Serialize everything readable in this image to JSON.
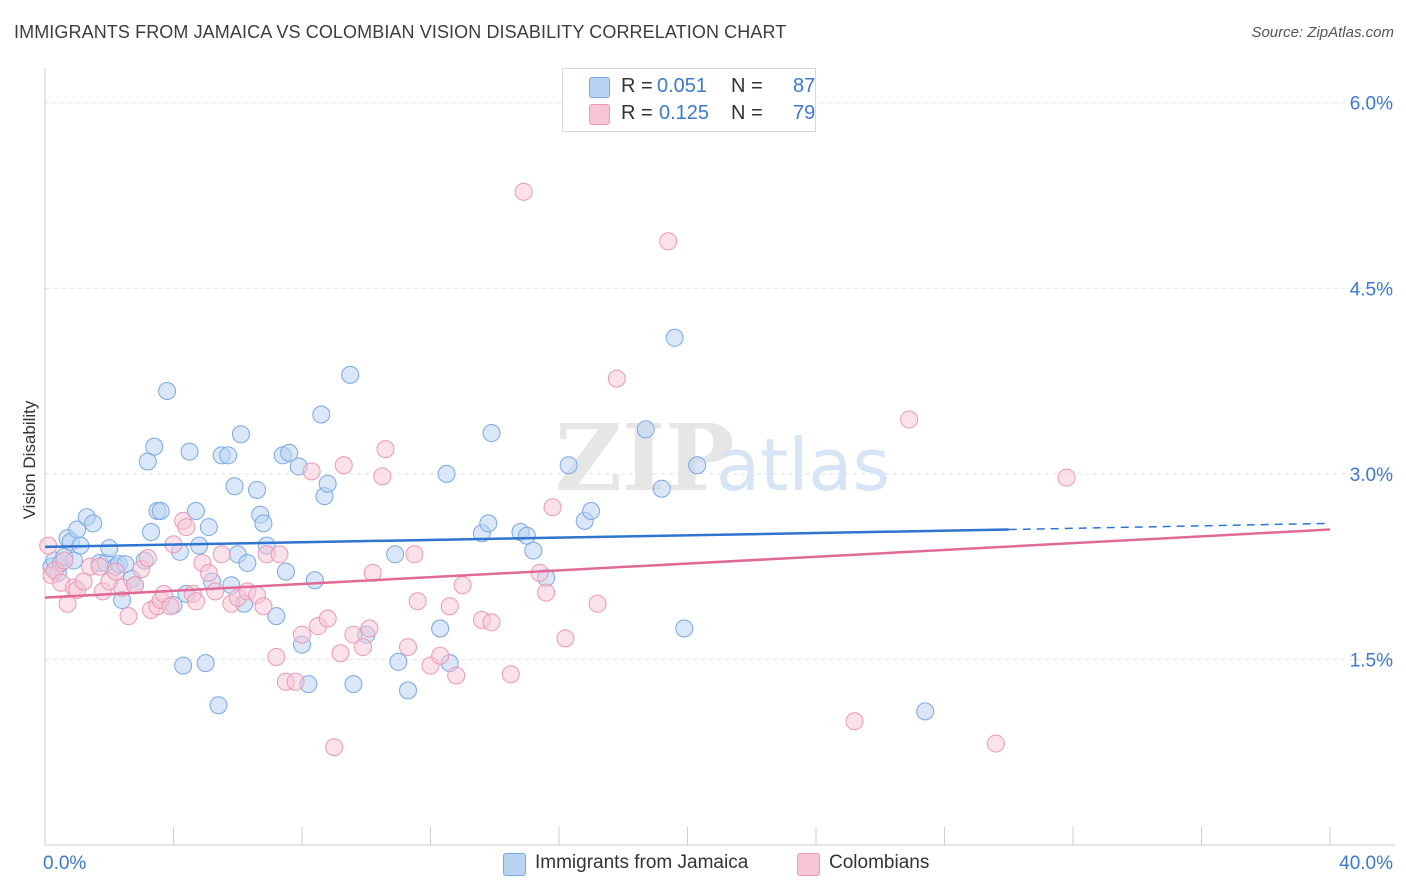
{
  "title": "IMMIGRANTS FROM JAMAICA VS COLOMBIAN VISION DISABILITY CORRELATION CHART",
  "source": "Source: ZipAtlas.com",
  "watermark": "ZIPatlas",
  "legend": {
    "series1": {
      "r_label": "R =",
      "r_value": "0.051",
      "n_label": "N =",
      "n_value": "87"
    },
    "series2": {
      "r_label": "R =",
      "r_value": "0.125",
      "n_label": "N =",
      "n_value": "79"
    }
  },
  "bottom_legend": {
    "series1": "Immigrants from Jamaica",
    "series2": "Colombians"
  },
  "colors": {
    "blue_fill": "#b9d3f3",
    "blue_stroke": "#7aa8e6",
    "blue_line": "#2f75d0",
    "pink_fill": "#f7c6d6",
    "pink_stroke": "#ec98b4",
    "pink_line": "#e06a95",
    "tick_text": "#3b78d0",
    "grid": "#e2e2e2"
  },
  "chart_data": {
    "type": "scatter",
    "title": "IMMIGRANTS FROM JAMAICA VS COLOMBIAN VISION DISABILITY CORRELATION CHART",
    "xlabel": "",
    "ylabel": "Vision Disability",
    "xlim": [
      0,
      40
    ],
    "ylim": [
      0,
      6.2
    ],
    "x_tick_labels": [
      "0.0%",
      "40.0%"
    ],
    "y_ticks": [
      1.5,
      3.0,
      4.5,
      6.0
    ],
    "y_tick_labels": [
      "1.5%",
      "3.0%",
      "4.5%",
      "6.0%"
    ],
    "grid": true,
    "legend_position": "top-center",
    "series": [
      {
        "name": "Immigrants from Jamaica",
        "color": "#b9d3f3",
        "trend": {
          "x0": 0,
          "y0": 2.41,
          "x1": 30,
          "y1": 2.55,
          "dashed_to_x": 40,
          "dashed_to_y": 2.6
        },
        "points": [
          [
            0.2,
            2.25
          ],
          [
            0.3,
            2.3
          ],
          [
            0.4,
            2.2
          ],
          [
            0.5,
            2.28
          ],
          [
            0.6,
            2.33
          ],
          [
            0.7,
            2.48
          ],
          [
            0.8,
            2.45
          ],
          [
            0.9,
            2.3
          ],
          [
            1.0,
            2.55
          ],
          [
            1.1,
            2.42
          ],
          [
            1.3,
            2.65
          ],
          [
            1.5,
            2.6
          ],
          [
            1.7,
            2.28
          ],
          [
            1.9,
            2.28
          ],
          [
            2.0,
            2.4
          ],
          [
            2.2,
            2.25
          ],
          [
            2.3,
            2.27
          ],
          [
            2.4,
            1.98
          ],
          [
            2.5,
            2.27
          ],
          [
            2.7,
            2.15
          ],
          [
            2.8,
            2.1
          ],
          [
            3.1,
            2.3
          ],
          [
            3.2,
            3.1
          ],
          [
            3.3,
            2.53
          ],
          [
            3.4,
            3.22
          ],
          [
            3.5,
            2.7
          ],
          [
            3.6,
            2.7
          ],
          [
            3.8,
            3.67
          ],
          [
            4.0,
            1.94
          ],
          [
            4.2,
            2.37
          ],
          [
            4.3,
            1.45
          ],
          [
            4.4,
            2.03
          ],
          [
            4.5,
            3.18
          ],
          [
            4.7,
            2.7
          ],
          [
            4.8,
            2.42
          ],
          [
            5.0,
            1.47
          ],
          [
            5.1,
            2.57
          ],
          [
            5.2,
            2.13
          ],
          [
            5.4,
            1.13
          ],
          [
            5.5,
            3.15
          ],
          [
            5.7,
            3.15
          ],
          [
            5.8,
            2.1
          ],
          [
            5.9,
            2.9
          ],
          [
            6.0,
            2.35
          ],
          [
            6.1,
            3.32
          ],
          [
            6.2,
            1.95
          ],
          [
            6.3,
            2.28
          ],
          [
            6.6,
            2.87
          ],
          [
            6.7,
            2.67
          ],
          [
            6.8,
            2.6
          ],
          [
            6.9,
            2.42
          ],
          [
            7.2,
            1.85
          ],
          [
            7.4,
            3.15
          ],
          [
            7.5,
            2.21
          ],
          [
            7.6,
            3.17
          ],
          [
            7.9,
            3.06
          ],
          [
            8.0,
            1.62
          ],
          [
            8.2,
            1.3
          ],
          [
            8.4,
            2.14
          ],
          [
            8.6,
            3.48
          ],
          [
            8.7,
            2.82
          ],
          [
            8.8,
            2.92
          ],
          [
            9.5,
            3.8
          ],
          [
            9.6,
            1.3
          ],
          [
            10.0,
            1.7
          ],
          [
            11.0,
            1.48
          ],
          [
            10.9,
            2.35
          ],
          [
            11.3,
            1.25
          ],
          [
            12.3,
            1.75
          ],
          [
            12.5,
            3.0
          ],
          [
            12.6,
            1.47
          ],
          [
            13.6,
            2.52
          ],
          [
            13.8,
            2.6
          ],
          [
            13.9,
            3.33
          ],
          [
            14.8,
            2.53
          ],
          [
            15.0,
            2.5
          ],
          [
            15.2,
            2.38
          ],
          [
            15.6,
            2.16
          ],
          [
            16.3,
            3.07
          ],
          [
            16.8,
            2.62
          ],
          [
            17.0,
            2.7
          ],
          [
            18.7,
            3.36
          ],
          [
            19.2,
            2.88
          ],
          [
            19.6,
            4.1
          ],
          [
            19.9,
            1.75
          ],
          [
            20.3,
            3.07
          ],
          [
            27.4,
            1.08
          ]
        ]
      },
      {
        "name": "Colombians",
        "color": "#f7c6d6",
        "trend": {
          "x0": 0,
          "y0": 2.0,
          "x1": 40,
          "y1": 2.55
        },
        "points": [
          [
            0.1,
            2.42
          ],
          [
            0.2,
            2.18
          ],
          [
            0.3,
            2.22
          ],
          [
            0.5,
            2.12
          ],
          [
            0.6,
            2.3
          ],
          [
            0.7,
            1.95
          ],
          [
            0.9,
            2.08
          ],
          [
            1.0,
            2.06
          ],
          [
            1.2,
            2.13
          ],
          [
            1.4,
            2.25
          ],
          [
            1.7,
            2.25
          ],
          [
            1.8,
            2.05
          ],
          [
            2.0,
            2.13
          ],
          [
            2.2,
            2.21
          ],
          [
            2.4,
            2.08
          ],
          [
            2.6,
            1.85
          ],
          [
            2.8,
            2.1
          ],
          [
            3.0,
            2.23
          ],
          [
            3.2,
            2.32
          ],
          [
            3.3,
            1.9
          ],
          [
            3.5,
            1.93
          ],
          [
            3.6,
            1.98
          ],
          [
            3.7,
            2.03
          ],
          [
            3.9,
            1.93
          ],
          [
            4.0,
            2.43
          ],
          [
            4.3,
            2.62
          ],
          [
            4.4,
            2.57
          ],
          [
            4.6,
            2.03
          ],
          [
            4.7,
            1.97
          ],
          [
            4.9,
            2.28
          ],
          [
            5.1,
            2.2
          ],
          [
            5.3,
            2.05
          ],
          [
            5.5,
            2.35
          ],
          [
            5.8,
            1.95
          ],
          [
            6.0,
            2.0
          ],
          [
            6.3,
            2.05
          ],
          [
            6.6,
            2.02
          ],
          [
            6.8,
            1.93
          ],
          [
            6.9,
            2.35
          ],
          [
            7.2,
            1.52
          ],
          [
            7.3,
            2.35
          ],
          [
            7.5,
            1.32
          ],
          [
            7.8,
            1.32
          ],
          [
            8.0,
            1.7
          ],
          [
            8.3,
            3.02
          ],
          [
            8.5,
            1.77
          ],
          [
            8.8,
            1.83
          ],
          [
            9.0,
            0.79
          ],
          [
            9.2,
            1.55
          ],
          [
            9.3,
            3.07
          ],
          [
            9.6,
            1.7
          ],
          [
            9.9,
            1.6
          ],
          [
            10.1,
            1.75
          ],
          [
            10.2,
            2.2
          ],
          [
            10.5,
            2.98
          ],
          [
            10.6,
            3.2
          ],
          [
            11.3,
            1.6
          ],
          [
            11.5,
            2.35
          ],
          [
            11.6,
            1.97
          ],
          [
            12.0,
            1.45
          ],
          [
            12.3,
            1.53
          ],
          [
            12.6,
            1.93
          ],
          [
            12.8,
            1.37
          ],
          [
            13.0,
            2.1
          ],
          [
            13.6,
            1.82
          ],
          [
            13.9,
            1.8
          ],
          [
            14.5,
            1.38
          ],
          [
            15.4,
            2.2
          ],
          [
            15.6,
            2.04
          ],
          [
            15.8,
            2.73
          ],
          [
            16.2,
            1.67
          ],
          [
            17.2,
            1.95
          ],
          [
            17.8,
            3.77
          ],
          [
            19.4,
            4.88
          ],
          [
            14.9,
            5.28
          ],
          [
            25.2,
            1.0
          ],
          [
            26.9,
            3.44
          ],
          [
            29.6,
            0.82
          ],
          [
            31.8,
            2.97
          ]
        ]
      }
    ]
  }
}
